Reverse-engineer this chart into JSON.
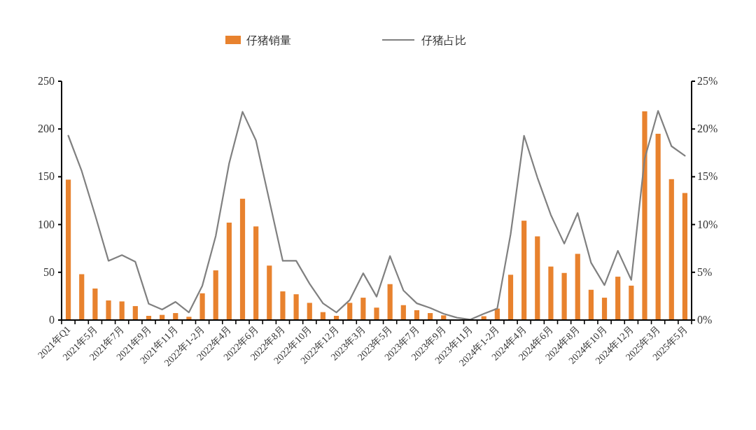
{
  "chart_data": {
    "type": "bar",
    "legend": "top",
    "categories": [
      "2021年Q1",
      null,
      "2021年5月",
      null,
      "2021年7月",
      null,
      "2021年9月",
      null,
      "2021年11月",
      null,
      "2022年1-2月",
      null,
      "2022年4月",
      null,
      "2022年6月",
      null,
      "2022年8月",
      null,
      "2022年10月",
      null,
      "2022年12月",
      null,
      "2023年3月",
      null,
      "2023年5月",
      null,
      "2023年7月",
      null,
      "2023年9月",
      null,
      "2023年11月",
      null,
      "2024年1-2月",
      null,
      "2024年4月",
      null,
      "2024年6月",
      null,
      "2024年8月",
      null,
      "2024年10月",
      null,
      "2024年12月",
      null,
      "2025年3月",
      null,
      "2025年5月"
    ],
    "series": [
      {
        "name": "仔猪销量",
        "color": "#e8822e",
        "values": [
          147,
          48,
          33,
          20.5,
          19.5,
          14.6,
          4.4,
          5.4,
          7.3,
          3.4,
          28,
          52,
          102,
          127,
          98,
          57,
          30,
          27,
          18,
          8.3,
          4.4,
          18,
          23.4,
          13,
          37.6,
          15.6,
          10.3,
          7.3,
          4.9,
          null,
          null,
          4,
          12,
          47.4,
          104,
          87.6,
          56,
          49.3,
          69.3,
          31.7,
          23.4,
          45.4,
          36,
          218.5,
          195,
          147.5,
          133
        ]
      },
      {
        "name": "仔猪占比",
        "type": "line",
        "axis": "y2",
        "color": "#808080",
        "values": [
          19.3,
          15.6,
          11,
          6.2,
          6.8,
          6.1,
          1.7,
          1.1,
          1.9,
          0.8,
          3.6,
          8.8,
          16.4,
          21.8,
          18.8,
          12.5,
          6.2,
          6.2,
          3.8,
          1.75,
          0.8,
          2.1,
          4.9,
          2.45,
          6.7,
          3.1,
          1.75,
          1.27,
          0.66,
          0.25,
          0.05,
          0.66,
          1.2,
          9,
          19.3,
          14.9,
          11,
          8,
          11.2,
          6,
          3.66,
          7.25,
          4.2,
          16.9,
          21.9,
          18.2,
          17.2
        ]
      }
    ],
    "ylim": [
      0,
      250
    ],
    "yticks": [
      0,
      50,
      100,
      150,
      200,
      250
    ],
    "y2lim": [
      0,
      25
    ],
    "y2ticks": [
      {
        "value": 0,
        "label": "0%"
      },
      {
        "value": 5,
        "label": "5%"
      },
      {
        "value": 10,
        "label": "10%"
      },
      {
        "value": 15,
        "label": "15%"
      },
      {
        "value": 20,
        "label": "20%"
      },
      {
        "value": 25,
        "label": "25%"
      }
    ]
  }
}
